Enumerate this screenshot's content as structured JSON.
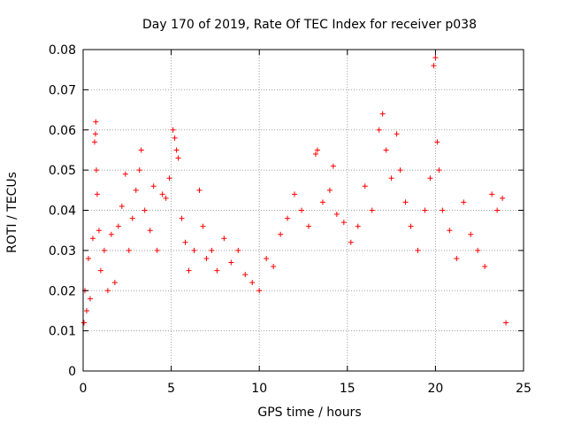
{
  "chart_data": {
    "type": "scatter",
    "title": "Day 170 of 2019, Rate Of TEC Index for receiver p038",
    "xlabel": "GPS time / hours",
    "ylabel": "ROTI / TECUs",
    "xlim": [
      0,
      25
    ],
    "ylim": [
      0,
      0.08
    ],
    "xticks": [
      0,
      5,
      10,
      15,
      20,
      25
    ],
    "yticks": [
      0,
      0.01,
      0.02,
      0.03,
      0.04,
      0.05,
      0.06,
      0.07,
      0.08
    ],
    "xtick_labels": [
      "0",
      "5",
      "10",
      "15",
      "20",
      "25"
    ],
    "ytick_labels": [
      "0",
      "0.01",
      "0.02",
      "0.03",
      "0.04",
      "0.05",
      "0.06",
      "0.07",
      "0.08"
    ],
    "grid": true,
    "marker": "+",
    "marker_color": "#ff0000",
    "series": [
      {
        "name": "ROTI",
        "points": [
          [
            0.05,
            0.012
          ],
          [
            0.1,
            0.02
          ],
          [
            0.2,
            0.015
          ],
          [
            0.3,
            0.028
          ],
          [
            0.4,
            0.018
          ],
          [
            0.55,
            0.033
          ],
          [
            0.65,
            0.057
          ],
          [
            0.7,
            0.059
          ],
          [
            0.72,
            0.062
          ],
          [
            0.75,
            0.05
          ],
          [
            0.8,
            0.044
          ],
          [
            0.9,
            0.035
          ],
          [
            1.0,
            0.025
          ],
          [
            1.2,
            0.03
          ],
          [
            1.4,
            0.02
          ],
          [
            1.6,
            0.034
          ],
          [
            1.8,
            0.022
          ],
          [
            2.0,
            0.036
          ],
          [
            2.2,
            0.041
          ],
          [
            2.4,
            0.049
          ],
          [
            2.6,
            0.03
          ],
          [
            2.8,
            0.038
          ],
          [
            3.0,
            0.045
          ],
          [
            3.2,
            0.05
          ],
          [
            3.3,
            0.055
          ],
          [
            3.5,
            0.04
          ],
          [
            3.8,
            0.035
          ],
          [
            4.0,
            0.046
          ],
          [
            4.2,
            0.03
          ],
          [
            4.5,
            0.044
          ],
          [
            4.7,
            0.043
          ],
          [
            4.9,
            0.048
          ],
          [
            5.1,
            0.06
          ],
          [
            5.2,
            0.058
          ],
          [
            5.3,
            0.055
          ],
          [
            5.4,
            0.053
          ],
          [
            5.6,
            0.038
          ],
          [
            5.8,
            0.032
          ],
          [
            6.0,
            0.025
          ],
          [
            6.3,
            0.03
          ],
          [
            6.6,
            0.045
          ],
          [
            6.8,
            0.036
          ],
          [
            7.0,
            0.028
          ],
          [
            7.3,
            0.03
          ],
          [
            7.6,
            0.025
          ],
          [
            8.0,
            0.033
          ],
          [
            8.4,
            0.027
          ],
          [
            8.8,
            0.03
          ],
          [
            9.2,
            0.024
          ],
          [
            9.6,
            0.022
          ],
          [
            10.0,
            0.02
          ],
          [
            10.4,
            0.028
          ],
          [
            10.8,
            0.026
          ],
          [
            11.2,
            0.034
          ],
          [
            11.6,
            0.038
          ],
          [
            12.0,
            0.044
          ],
          [
            12.4,
            0.04
          ],
          [
            12.8,
            0.036
          ],
          [
            13.2,
            0.054
          ],
          [
            13.3,
            0.055
          ],
          [
            13.6,
            0.042
          ],
          [
            14.0,
            0.045
          ],
          [
            14.2,
            0.051
          ],
          [
            14.4,
            0.039
          ],
          [
            14.8,
            0.037
          ],
          [
            15.2,
            0.032
          ],
          [
            15.6,
            0.036
          ],
          [
            16.0,
            0.046
          ],
          [
            16.4,
            0.04
          ],
          [
            16.8,
            0.06
          ],
          [
            17.0,
            0.064
          ],
          [
            17.2,
            0.055
          ],
          [
            17.5,
            0.048
          ],
          [
            17.8,
            0.059
          ],
          [
            18.0,
            0.05
          ],
          [
            18.3,
            0.042
          ],
          [
            18.6,
            0.036
          ],
          [
            19.0,
            0.03
          ],
          [
            19.4,
            0.04
          ],
          [
            19.7,
            0.048
          ],
          [
            19.9,
            0.076
          ],
          [
            20.0,
            0.078
          ],
          [
            20.1,
            0.057
          ],
          [
            20.2,
            0.05
          ],
          [
            20.4,
            0.04
          ],
          [
            20.8,
            0.035
          ],
          [
            21.2,
            0.028
          ],
          [
            21.6,
            0.042
          ],
          [
            22.0,
            0.034
          ],
          [
            22.4,
            0.03
          ],
          [
            22.8,
            0.026
          ],
          [
            23.2,
            0.044
          ],
          [
            23.5,
            0.04
          ],
          [
            23.8,
            0.043
          ],
          [
            24.0,
            0.012
          ]
        ]
      }
    ]
  }
}
